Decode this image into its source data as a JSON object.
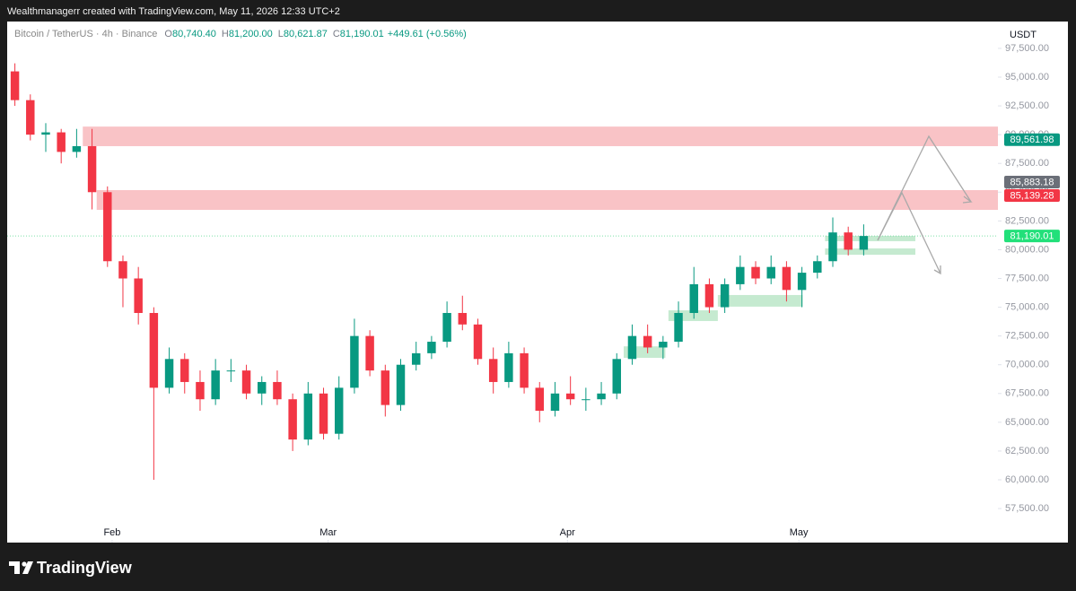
{
  "top_bar": "Wealthmanagerr created with TradingView.com, May 11, 2026 12:33 UTC+2",
  "footer": {
    "brand": "TradingView"
  },
  "chart_data": {
    "type": "candlestick",
    "title": "Bitcoin / TetherUS · 4h · Binance",
    "ohlc_legend": [
      {
        "key": "O",
        "value": "80,740.40"
      },
      {
        "key": "H",
        "value": "81,200.00"
      },
      {
        "key": "L",
        "value": "80,621.87"
      },
      {
        "key": "C",
        "value": "81,190.01"
      }
    ],
    "change": "+449.61 (+0.56%)",
    "currency": "USDT",
    "up_color": "#089981",
    "down_color": "#f23645",
    "xlim": [
      0,
      128.4
    ],
    "xticks": [
      {
        "value": 13.6,
        "label": "Feb"
      },
      {
        "value": 41.6,
        "label": "Mar"
      },
      {
        "value": 72.6,
        "label": "Apr"
      },
      {
        "value": 102.6,
        "label": "May"
      }
    ],
    "ylim": [
      54543,
      99833
    ],
    "yticks": [
      {
        "value": 57500,
        "label": "57,500.00"
      },
      {
        "value": 60000,
        "label": "60,000.00"
      },
      {
        "value": 62500,
        "label": "62,500.00"
      },
      {
        "value": 65000,
        "label": "65,000.00"
      },
      {
        "value": 67500,
        "label": "67,500.00"
      },
      {
        "value": 70000,
        "label": "70,000.00"
      },
      {
        "value": 72500,
        "label": "72,500.00"
      },
      {
        "value": 75000,
        "label": "75,000.00"
      },
      {
        "value": 77500,
        "label": "77,500.00"
      },
      {
        "value": 80000,
        "label": "80,000.00"
      },
      {
        "value": 82500,
        "label": "82,500.00"
      },
      {
        "value": 85000,
        "label": "85,000.00"
      },
      {
        "value": 87500,
        "label": "87,500.00"
      },
      {
        "value": 90000,
        "label": "90,000.00"
      },
      {
        "value": 92500,
        "label": "92,500.00"
      },
      {
        "value": 95000,
        "label": "95,000.00"
      },
      {
        "value": 97500,
        "label": "97,500.00"
      }
    ],
    "x": [
      1,
      3,
      5,
      7,
      9,
      11,
      13,
      15,
      17,
      19,
      21,
      23,
      25,
      27,
      29,
      31,
      33,
      35,
      37,
      39,
      41,
      43,
      45,
      47,
      49,
      51,
      53,
      55,
      57,
      59,
      61,
      63,
      65,
      67,
      69,
      71,
      73,
      75,
      77,
      79,
      81,
      83,
      85,
      87,
      89,
      91,
      93,
      95,
      97,
      99,
      101,
      103,
      105,
      107,
      109,
      111
    ],
    "open": [
      95500,
      93000,
      90000,
      90200,
      88500,
      89000,
      85000,
      79000,
      77500,
      74500,
      68000,
      70500,
      68500,
      67000,
      69500,
      69500,
      67500,
      68500,
      67000,
      63500,
      67500,
      64000,
      68000,
      72500,
      69500,
      66500,
      70000,
      71000,
      72000,
      74500,
      73500,
      70500,
      68500,
      71000,
      68000,
      66000,
      67500,
      67000,
      67000,
      67500,
      70500,
      72500,
      71500,
      72000,
      74500,
      77000,
      75000,
      77000,
      78500,
      77500,
      78500,
      76500,
      78000,
      79000,
      81500,
      80000
    ],
    "high": [
      96200,
      93500,
      91000,
      90500,
      90500,
      90500,
      85500,
      79500,
      78500,
      75000,
      71500,
      71000,
      69500,
      70500,
      70500,
      70000,
      69000,
      69500,
      67500,
      68500,
      68000,
      69000,
      74000,
      73000,
      70000,
      70500,
      72000,
      72500,
      75500,
      76000,
      74000,
      71500,
      72000,
      71500,
      68500,
      68500,
      69000,
      68000,
      68500,
      71000,
      73500,
      73500,
      72500,
      75500,
      78500,
      77500,
      77500,
      79500,
      79000,
      79500,
      79000,
      78500,
      79500,
      82800,
      82000,
      82200
    ],
    "low": [
      92500,
      89500,
      88500,
      87500,
      88000,
      83500,
      78500,
      75000,
      73500,
      60000,
      67500,
      67500,
      66000,
      66500,
      68500,
      67000,
      66500,
      66500,
      62500,
      63000,
      63500,
      63500,
      67500,
      69000,
      65500,
      66000,
      69500,
      70500,
      71500,
      73000,
      70000,
      67500,
      68000,
      67500,
      65000,
      65500,
      66500,
      66000,
      66500,
      67000,
      70000,
      71000,
      70500,
      71500,
      74000,
      74500,
      74500,
      76500,
      77000,
      77000,
      75500,
      75000,
      77500,
      78500,
      79500,
      79500
    ],
    "close": [
      93000,
      90000,
      90200,
      88500,
      89000,
      85000,
      79000,
      77500,
      74500,
      68000,
      70500,
      68500,
      67000,
      69500,
      69500,
      67500,
      68500,
      67000,
      63500,
      67500,
      64000,
      68000,
      72500,
      69500,
      66500,
      70000,
      71000,
      72000,
      74500,
      73500,
      70500,
      68500,
      71000,
      68000,
      66000,
      67500,
      67000,
      67000,
      67500,
      70500,
      72500,
      71500,
      72000,
      74500,
      77000,
      75000,
      77000,
      78500,
      77500,
      78500,
      76500,
      78000,
      79000,
      81500,
      80000,
      81190.01
    ],
    "zones": [
      {
        "top": 90700,
        "bottom": 89000,
        "start": 9.8,
        "end": 128.4,
        "color": "#f8bcc0"
      },
      {
        "top": 85180,
        "bottom": 83460,
        "start": 11.6,
        "end": 128.4,
        "color": "#f8bcc0"
      },
      {
        "top": 71600,
        "bottom": 70600,
        "start": 79.9,
        "end": 85.3,
        "color": "#bfe8cb"
      },
      {
        "top": 74730,
        "bottom": 73800,
        "start": 85.7,
        "end": 92.1,
        "color": "#bfe8cb"
      },
      {
        "top": 76060,
        "bottom": 75050,
        "start": 92.1,
        "end": 103.1,
        "color": "#bfe8cb"
      },
      {
        "top": 81200,
        "bottom": 80740,
        "start": 106,
        "end": 117.7,
        "color": "#bfe8cb"
      },
      {
        "top": 80110,
        "bottom": 79560,
        "start": 106,
        "end": 117.7,
        "color": "#bfe8cb"
      }
    ],
    "price_labels": [
      {
        "value": 89561.98,
        "label": "89,561.98",
        "color": "#089981"
      },
      {
        "value": 85883.18,
        "label": "85,883.18",
        "color": "#6b6f78"
      },
      {
        "value": 85139.28,
        "label": "85,139.28",
        "color": "#f23645"
      },
      {
        "value": 81190.01,
        "label": "81,190.01",
        "color": "#22e07a"
      }
    ]
  }
}
